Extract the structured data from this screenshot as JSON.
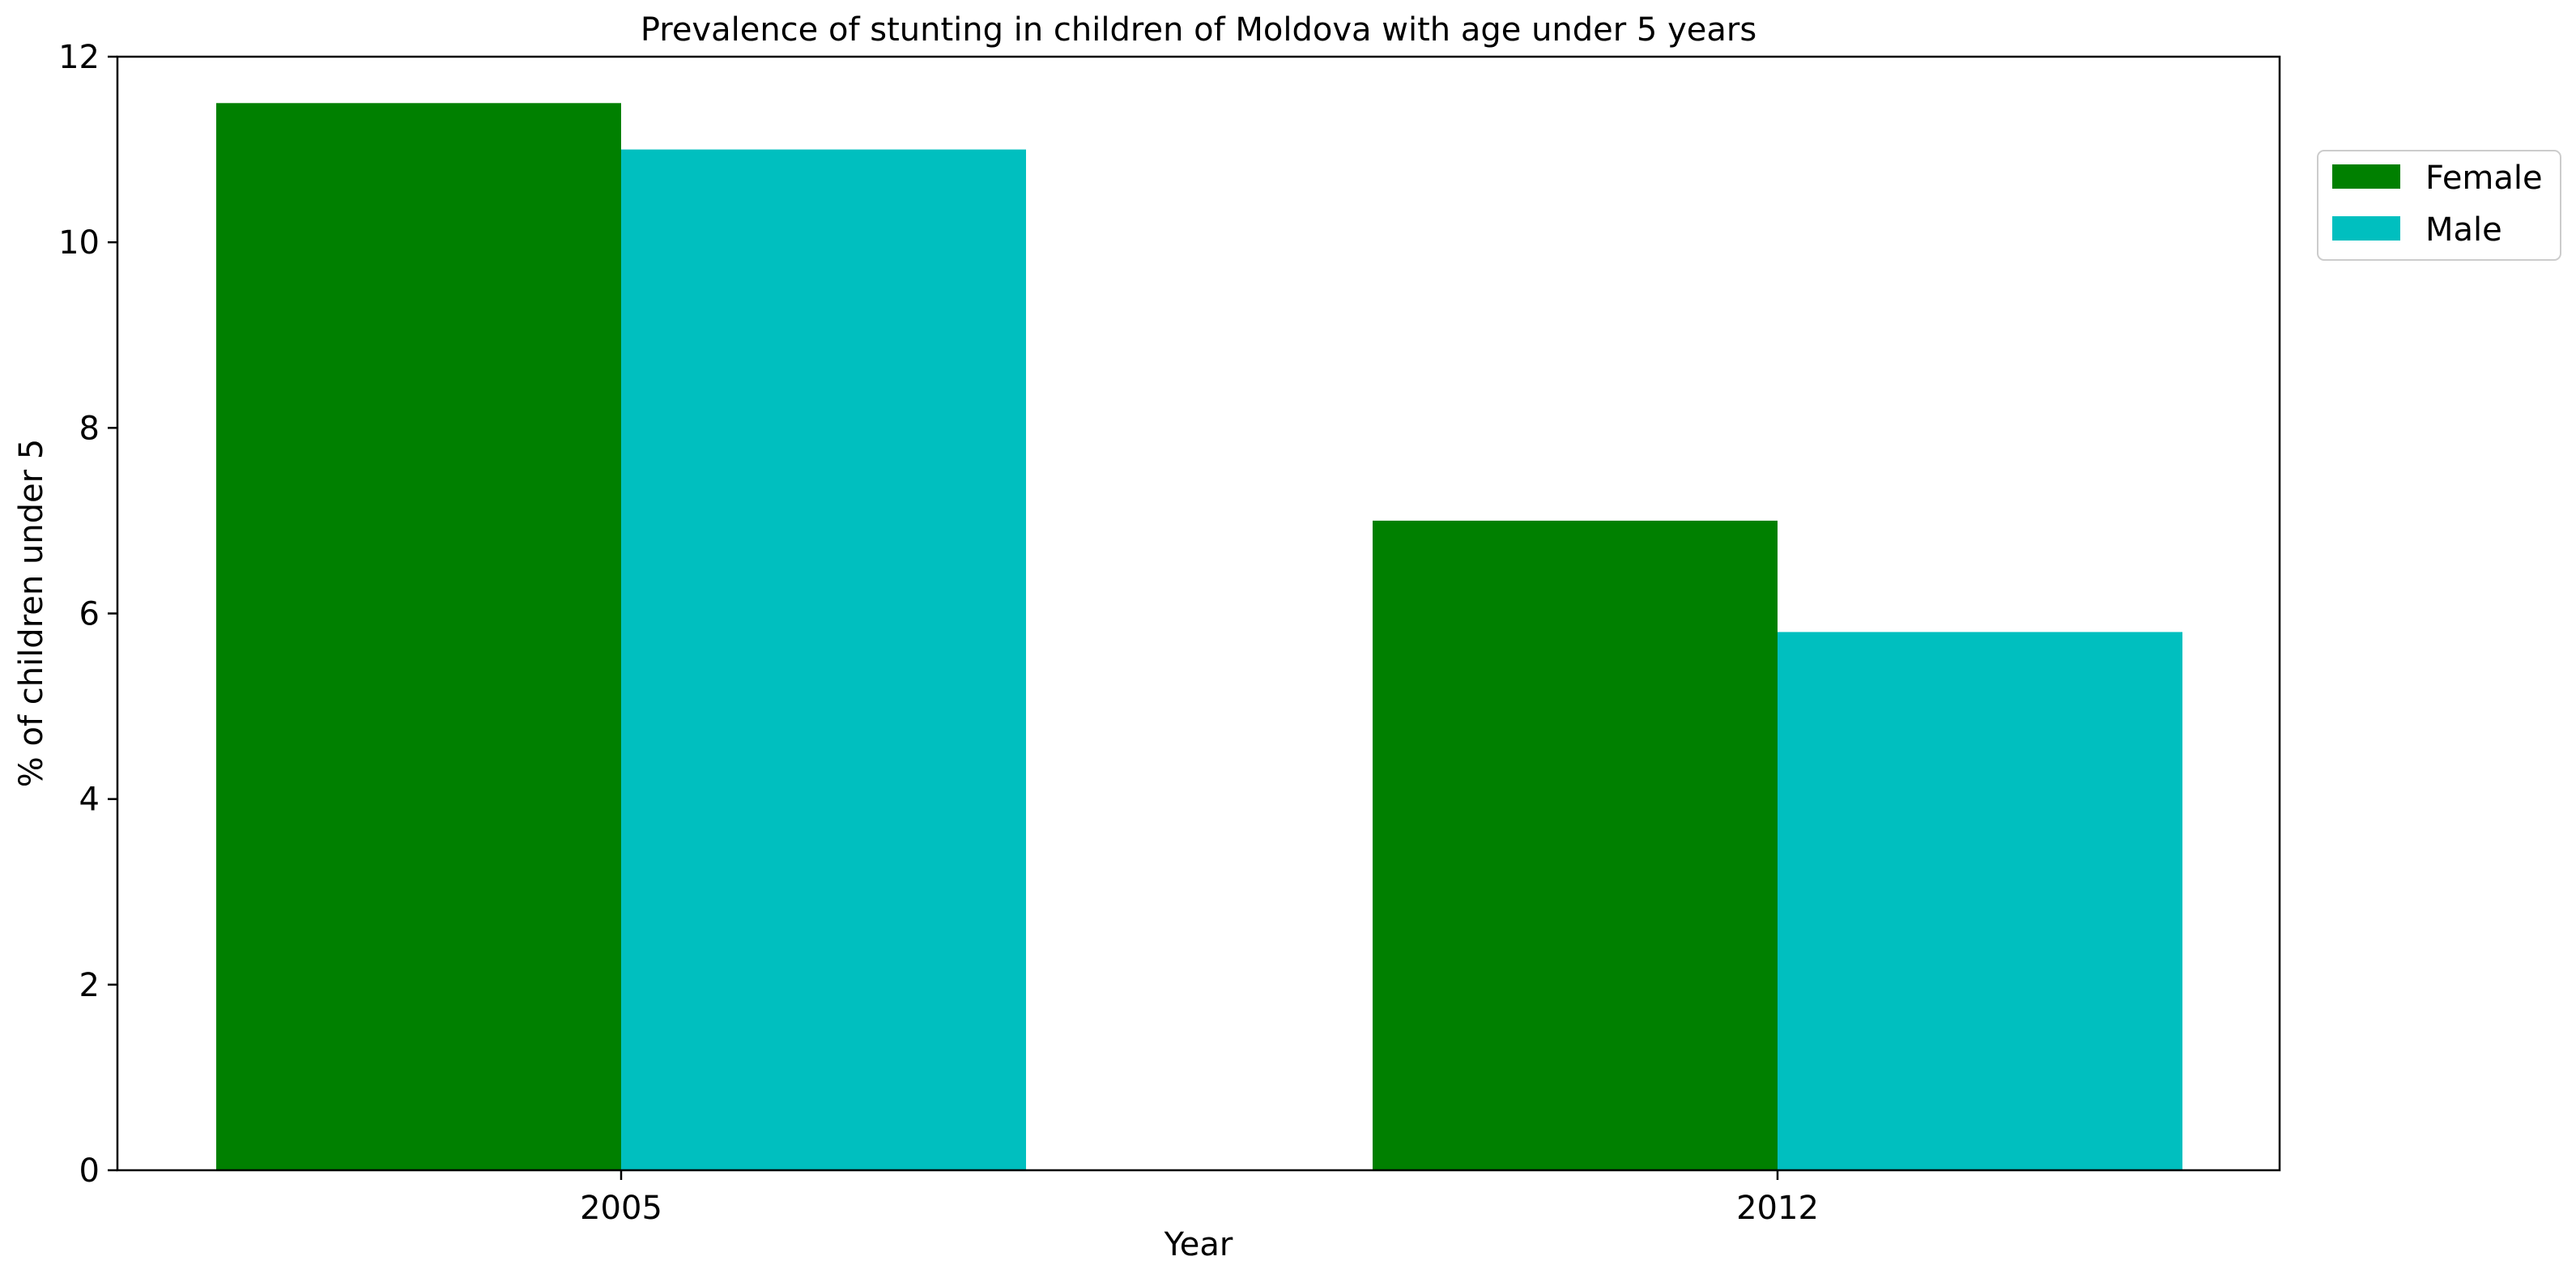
{
  "chart_data": {
    "type": "bar",
    "title": "Prevalence of stunting in children of Moldova with age under 5 years",
    "xlabel": "Year",
    "ylabel": "% of children under 5",
    "categories": [
      "2005",
      "2012"
    ],
    "ylim": [
      0,
      12
    ],
    "yticks": [
      "0",
      "2",
      "4",
      "6",
      "8",
      "10",
      "12"
    ],
    "series": [
      {
        "name": "Female",
        "values": [
          11.5,
          7.0
        ],
        "color": "#008000"
      },
      {
        "name": "Male",
        "values": [
          11.0,
          5.8
        ],
        "color": "#00BFBF"
      }
    ],
    "legend_position": "upper-right-outside",
    "grid": false
  }
}
